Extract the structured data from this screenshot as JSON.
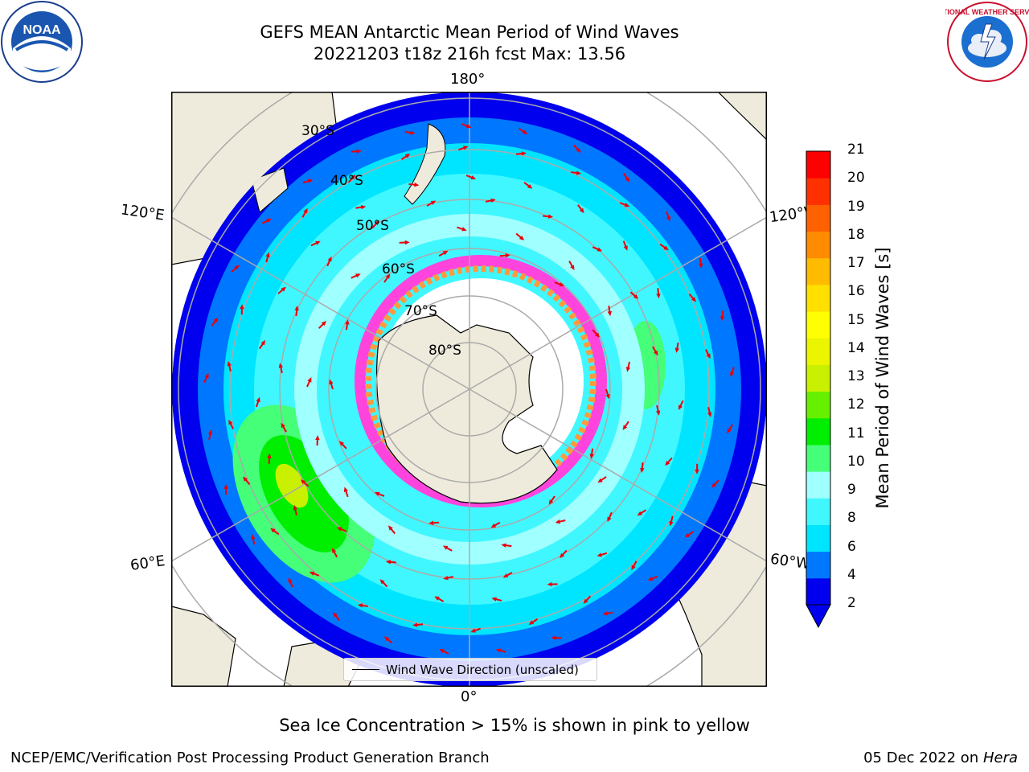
{
  "title": {
    "line1": "GEFS MEAN Antarctic Mean Period of Wind Waves",
    "line2": "20221203 t18z 216h fcst   Max: 13.56"
  },
  "map": {
    "longitude_labels": {
      "top": "180°",
      "bottom": "0°",
      "upper_left": "120°E",
      "lower_left": "60°E",
      "upper_right": "120°W",
      "lower_right": "60°W"
    },
    "latitude_labels": [
      "30°S",
      "40°S",
      "50°S",
      "60°S",
      "70°S",
      "80°S"
    ],
    "legend": "Wind Wave Direction (unscaled)",
    "arrow_color": "#e8000b",
    "land_color": "#efebdc",
    "ice_colors": [
      "#ff44dd",
      "#ff9a3c",
      "#ffd75a"
    ]
  },
  "colorbar": {
    "label": "Mean Period of Wind Waves [s]",
    "ticks": [
      "2",
      "4",
      "6",
      "8",
      "9",
      "10",
      "11",
      "12",
      "13",
      "14",
      "15",
      "16",
      "17",
      "18",
      "19",
      "20",
      "21"
    ],
    "colors": [
      "#0000ee",
      "#0077ff",
      "#00e5ff",
      "#40f7ff",
      "#a0ffff",
      "#44ff77",
      "#00ee00",
      "#66f000",
      "#c8f000",
      "#ecf500",
      "#ffff00",
      "#ffe000",
      "#ffbb00",
      "#ff8c00",
      "#ff6000",
      "#ff3000",
      "#ff0000"
    ]
  },
  "caption": "Sea Ice Concentration > 15% is shown in pink to yellow",
  "footer": {
    "left": "NCEP/EMC/Verification Post Processing Product Generation Branch",
    "right_prefix": "05 Dec 2022 on ",
    "right_machine": "Hera"
  },
  "logos": {
    "noaa": "NOAA",
    "nws": "NATIONAL WEATHER SERVICE"
  }
}
